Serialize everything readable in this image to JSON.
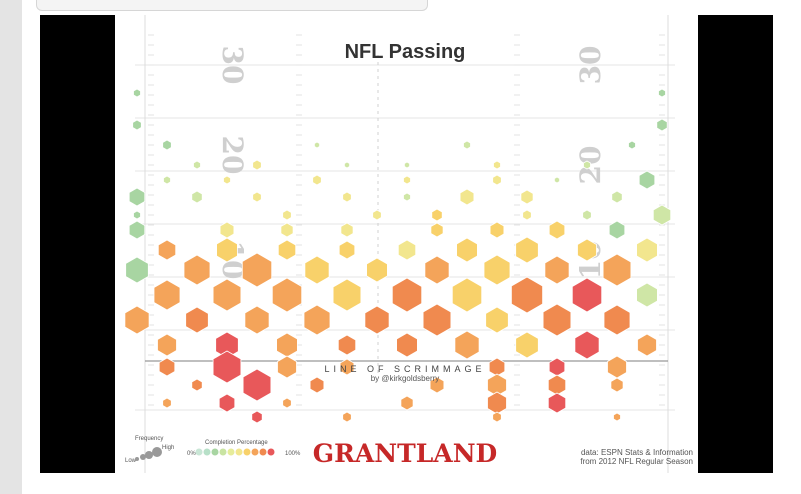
{
  "chart": {
    "title": "NFL Passing",
    "yard_labels": {
      "left": [
        "30",
        "20",
        "10"
      ],
      "right": [
        "30",
        "20",
        "10"
      ]
    },
    "line_of_scrimmage_label": "LINE OF SCRIMMAGE",
    "credit": "by @kirkgoldsberry",
    "legend": {
      "frequency_title": "Frequency",
      "frequency_low": "Low",
      "frequency_high": "High",
      "completion_title": "Completion Percentage",
      "completion_min": "0%",
      "completion_max": "100%"
    },
    "brand": "GRANTLAND",
    "source_line1": "data: ESPN Stats & Information",
    "source_line2": "from 2012 NFL Regular Season"
  },
  "colors": {
    "green": "#a8d5a2",
    "yellow": "#f2e68e",
    "orange": "#f4a45a",
    "red": "#e8585a",
    "brand_red": "#c62828",
    "frame_black": "#000000"
  }
}
